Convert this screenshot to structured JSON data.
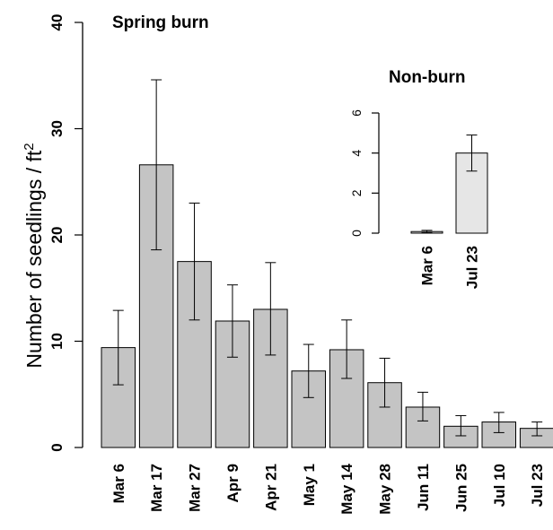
{
  "chart_data": [
    {
      "type": "bar",
      "title": "Spring burn",
      "ylabel": "Number of seedlings / ft",
      "ylabel_sup": "2",
      "categories": [
        "Mar 6",
        "Mar 17",
        "Mar 27",
        "Apr 9",
        "Apr 21",
        "May 1",
        "May 14",
        "May 28",
        "Jun 11",
        "Jun 25",
        "Jul 10",
        "Jul 23"
      ],
      "values": [
        9.4,
        26.6,
        17.5,
        11.9,
        13.0,
        7.2,
        9.2,
        6.1,
        3.8,
        2.0,
        2.4,
        1.8
      ],
      "error_low": [
        5.9,
        18.6,
        12.0,
        8.5,
        8.7,
        4.7,
        6.5,
        3.8,
        2.5,
        1.1,
        1.4,
        1.1
      ],
      "error_high": [
        12.9,
        34.6,
        23.0,
        15.3,
        17.4,
        9.7,
        12.0,
        8.4,
        5.2,
        3.0,
        3.3,
        2.4
      ],
      "ylim": [
        0,
        40
      ],
      "yticks": [
        0,
        10,
        20,
        30,
        40
      ],
      "bar_color": "#c4c4c4",
      "grid": false
    },
    {
      "type": "bar",
      "title": "Non-burn",
      "categories": [
        "Mar 6",
        "Jul 23"
      ],
      "values": [
        0.08,
        4.0
      ],
      "error_low": [
        0.02,
        3.1
      ],
      "error_high": [
        0.14,
        4.9
      ],
      "ylim": [
        0,
        6
      ],
      "yticks": [
        0,
        2,
        4,
        6
      ],
      "bar_color": "#e6e6e6",
      "grid": false
    }
  ]
}
